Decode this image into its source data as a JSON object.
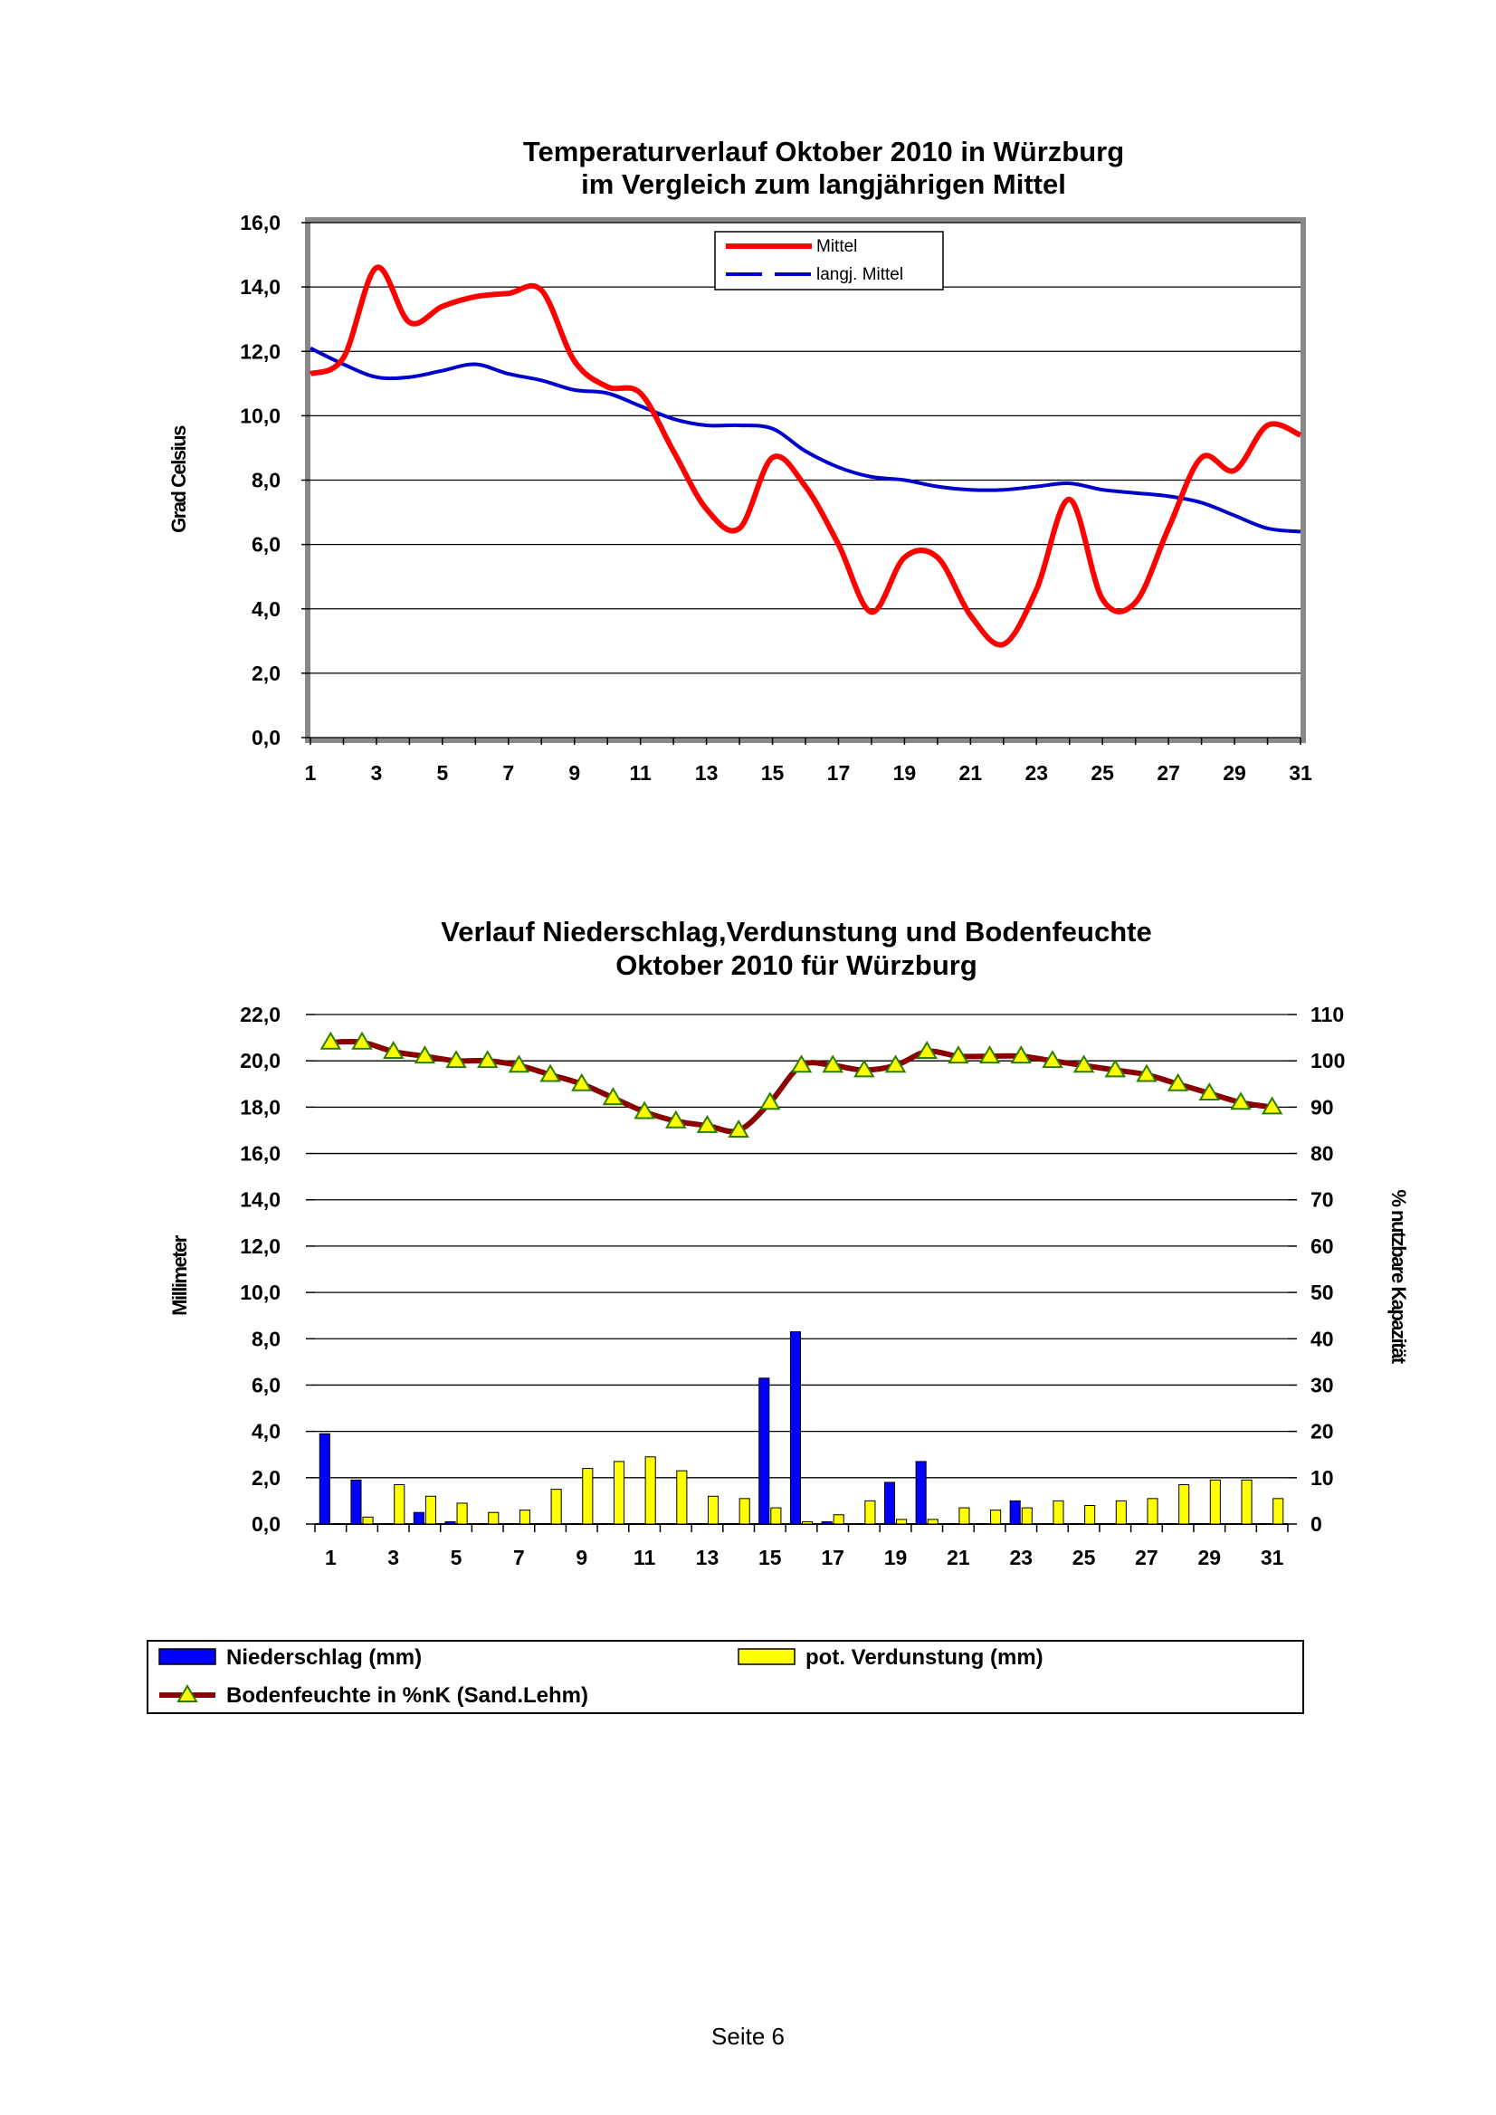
{
  "colors": {
    "mittel": "#ff0000",
    "langj": "#0000cc",
    "niederschlag": "#0000ff",
    "verdunstung": "#ffff00",
    "bodenfeuchte_line": "#8b0000",
    "bodenfeuchte_marker": "#ffff00"
  },
  "chart_data": [
    {
      "type": "line",
      "title_lines": [
        "Temperaturverlauf Oktober 2010 in Würzburg",
        "im Vergleich zum langjährigen Mittel"
      ],
      "xlabel": "",
      "ylabel": "Grad Celsius",
      "ylim": [
        0,
        16
      ],
      "yticks": [
        "0,0",
        "2,0",
        "4,0",
        "6,0",
        "8,0",
        "10,0",
        "12,0",
        "14,0",
        "16,0"
      ],
      "xticks": [
        "1",
        "3",
        "5",
        "7",
        "9",
        "11",
        "13",
        "15",
        "17",
        "19",
        "21",
        "23",
        "25",
        "27",
        "29",
        "31"
      ],
      "grid": true,
      "legend_position": "top-center",
      "x": [
        1,
        2,
        3,
        4,
        5,
        6,
        7,
        8,
        9,
        10,
        11,
        12,
        13,
        14,
        15,
        16,
        17,
        18,
        19,
        20,
        21,
        22,
        23,
        24,
        25,
        26,
        27,
        28,
        29,
        30,
        31
      ],
      "series": [
        {
          "name": "Mittel",
          "values": [
            11.3,
            11.8,
            14.6,
            12.9,
            13.4,
            13.7,
            13.8,
            13.9,
            11.7,
            10.9,
            10.7,
            8.9,
            7.1,
            6.5,
            8.7,
            7.8,
            6.0,
            3.9,
            5.6,
            5.6,
            3.8,
            2.9,
            4.6,
            7.4,
            4.3,
            4.2,
            6.5,
            8.7,
            8.3,
            9.7,
            9.4
          ]
        },
        {
          "name": "langj. Mittel",
          "values": [
            12.1,
            11.6,
            11.2,
            11.2,
            11.4,
            11.6,
            11.3,
            11.1,
            10.8,
            10.7,
            10.3,
            9.9,
            9.7,
            9.7,
            9.6,
            8.9,
            8.4,
            8.1,
            8.0,
            7.8,
            7.7,
            7.7,
            7.8,
            7.9,
            7.7,
            7.6,
            7.5,
            7.3,
            6.9,
            6.5,
            6.4
          ]
        }
      ]
    },
    {
      "type": "bar",
      "title_lines": [
        "Verlauf Niederschlag,Verdunstung und Bodenfeuchte",
        "Oktober 2010 für Würzburg"
      ],
      "xlabel": "",
      "ylabel": "Millimeter",
      "y2label": "% nutzbare Kapazität",
      "ylim": [
        0,
        22
      ],
      "y2lim": [
        0,
        110
      ],
      "yticks": [
        "0,0",
        "2,0",
        "4,0",
        "6,0",
        "8,0",
        "10,0",
        "12,0",
        "14,0",
        "16,0",
        "18,0",
        "20,0",
        "22,0"
      ],
      "y2ticks": [
        "0",
        "10",
        "20",
        "30",
        "40",
        "50",
        "60",
        "70",
        "80",
        "90",
        "100",
        "110"
      ],
      "xticks": [
        "1",
        "3",
        "5",
        "7",
        "9",
        "11",
        "13",
        "15",
        "17",
        "19",
        "21",
        "23",
        "25",
        "27",
        "29",
        "31"
      ],
      "grid": true,
      "legend_position": "bottom",
      "x": [
        1,
        2,
        3,
        4,
        5,
        6,
        7,
        8,
        9,
        10,
        11,
        12,
        13,
        14,
        15,
        16,
        17,
        18,
        19,
        20,
        21,
        22,
        23,
        24,
        25,
        26,
        27,
        28,
        29,
        30,
        31
      ],
      "series": [
        {
          "name": "Niederschlag (mm)",
          "type": "bar",
          "axis": "left",
          "values": [
            3.9,
            1.9,
            0,
            0.5,
            0.1,
            0,
            0,
            0,
            0,
            0,
            0,
            0,
            0,
            0,
            6.3,
            8.3,
            0.1,
            0,
            1.8,
            2.7,
            0,
            0,
            1.0,
            0,
            0,
            0,
            0,
            0,
            0,
            0,
            0
          ]
        },
        {
          "name": "pot. Verdunstung (mm)",
          "type": "bar",
          "axis": "left",
          "values": [
            0,
            0.3,
            1.7,
            1.2,
            0.9,
            0.5,
            0.6,
            1.5,
            2.4,
            2.7,
            2.9,
            2.3,
            1.2,
            1.1,
            0.7,
            0.1,
            0.4,
            1.0,
            0.2,
            0.2,
            0.7,
            0.6,
            0.7,
            1.0,
            0.8,
            1.0,
            1.1,
            1.7,
            1.9,
            1.9,
            1.1
          ]
        },
        {
          "name": "Bodenfeuchte in %nK (Sand.Lehm)",
          "type": "line",
          "axis": "right",
          "values": [
            104,
            104,
            102,
            101,
            100,
            100,
            99,
            97,
            95,
            92,
            89,
            87,
            86,
            85,
            91,
            99,
            99,
            98,
            99,
            102,
            101,
            101,
            101,
            100,
            99,
            98,
            97,
            95,
            93,
            91,
            90
          ]
        }
      ]
    }
  ],
  "footer": {
    "page_label": "Seite 6"
  }
}
